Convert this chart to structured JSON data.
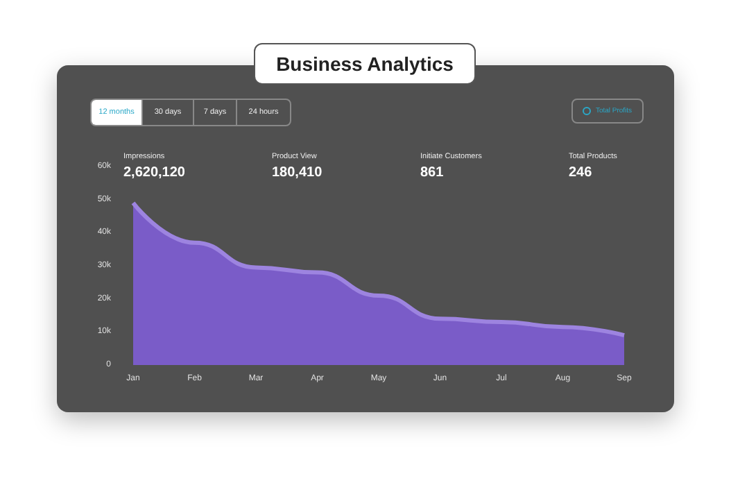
{
  "chart_data": {
    "type": "area",
    "title": "Business Analytics",
    "annotations": [
      "12 months",
      "30 days",
      "7 days",
      "24 hours",
      "Total Profits",
      "Impressions",
      "2,620,120",
      "Product View",
      "180,410",
      "Initiate Customers",
      "861",
      "Total Products",
      "246"
    ],
    "categories": [
      "Jan",
      "Feb",
      "Mar",
      "Apr",
      "May",
      "Jun",
      "Jul",
      "Aug",
      "Sep"
    ],
    "series": [
      {
        "color": "#7a5cc8",
        "values": [
          49000,
          37000,
          29500,
          28000,
          21000,
          14000,
          13000,
          11500,
          9000
        ]
      }
    ],
    "ylim": [
      0,
      60000
    ],
    "yticks": [
      {
        "value": 0,
        "label": "0"
      },
      {
        "value": 10000,
        "label": "10k"
      },
      {
        "value": 20000,
        "label": "20k"
      },
      {
        "value": 30000,
        "label": "30k"
      },
      {
        "value": 40000,
        "label": "40k"
      },
      {
        "value": 50000,
        "label": "50k"
      },
      {
        "value": 60000,
        "label": "60k"
      }
    ],
    "grid": false,
    "marker": "none"
  }
}
